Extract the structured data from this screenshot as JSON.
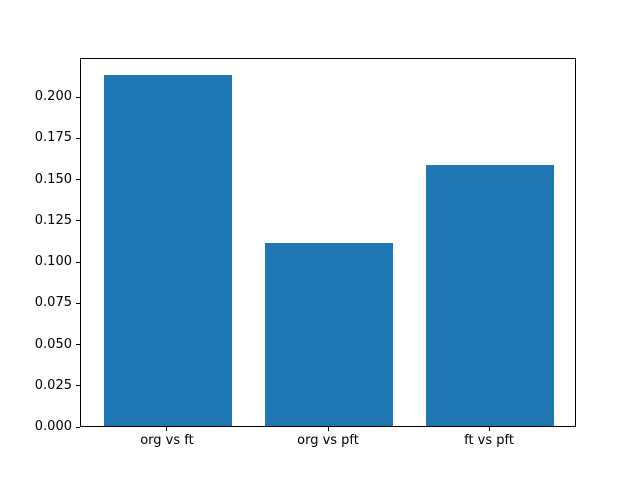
{
  "chart_data": {
    "type": "bar",
    "title": "",
    "xlabel": "",
    "ylabel": "",
    "categories": [
      "org vs ft",
      "org vs pft",
      "ft vs pft"
    ],
    "values": [
      0.213,
      0.111,
      0.158
    ],
    "ytick_labels": [
      "0.000",
      "0.025",
      "0.050",
      "0.075",
      "0.100",
      "0.125",
      "0.150",
      "0.175",
      "0.200"
    ],
    "ylim": [
      0,
      0.2237
    ],
    "xlim": [
      -0.54,
      2.54
    ],
    "bar_width": 0.8,
    "bar_color": "#1f77b4",
    "spine_color": "#000000",
    "text_color": "#000000",
    "background_color": "#ffffff",
    "grid": false,
    "legend": "none"
  }
}
